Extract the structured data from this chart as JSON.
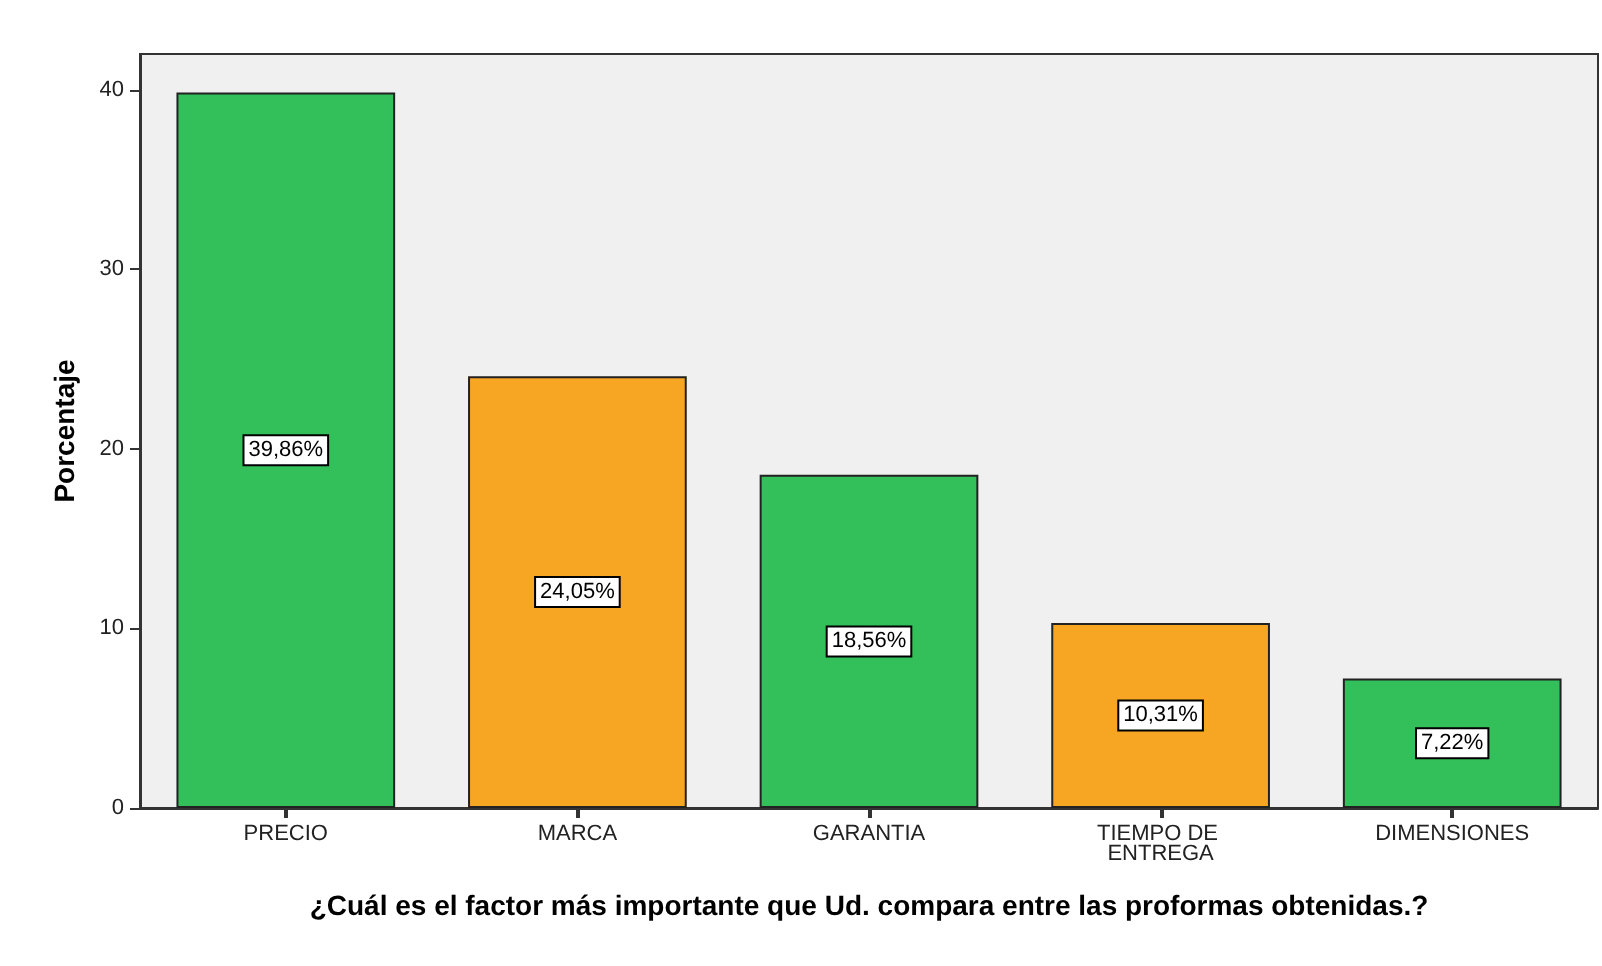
{
  "chart_data": {
    "type": "bar",
    "xlabel": "¿Cuál es el factor más importante que Ud. compara entre las proformas obtenidas.?",
    "ylabel": "Porcentaje",
    "categories": [
      "PRECIO",
      "MARCA",
      "GARANTIA",
      "TIEMPO DE ENTREGA",
      "DIMENSIONES"
    ],
    "values": [
      39.86,
      24.05,
      18.56,
      10.31,
      7.22
    ],
    "value_labels": [
      "39,86%",
      "24,05%",
      "18,56%",
      "10,31%",
      "7,22%"
    ],
    "colors": [
      "#33bf5a",
      "#f7a623",
      "#33bf5a",
      "#f7a623",
      "#33bf5a"
    ],
    "ylim": [
      0,
      42
    ],
    "yticks": [
      0,
      10,
      20,
      30,
      40
    ],
    "grid": false
  }
}
